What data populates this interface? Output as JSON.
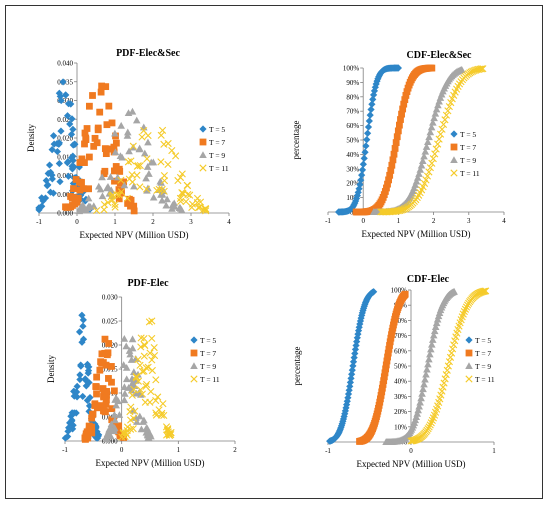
{
  "colors": {
    "t5": "#2E86C8",
    "t7": "#F07A20",
    "t9": "#A6A6A6",
    "t11": "#F5CB2A",
    "axis": "#7f7f7f"
  },
  "legend": [
    "T = 5",
    "T = 7",
    "T = 9",
    "T = 11"
  ],
  "chart_data": [
    {
      "type": "scatter",
      "title": "PDF-Elec&Sec",
      "xlabel": "Expected NPV (Million USD)",
      "ylabel": "Density",
      "xlim": [
        -1,
        4
      ],
      "ylim": [
        0,
        0.04
      ],
      "xticks": [
        "-1",
        "0",
        "1",
        "2",
        "3",
        "4"
      ],
      "yticks": [
        "0.000",
        "0.005",
        "0.010",
        "0.015",
        "0.020",
        "0.025",
        "0.030",
        "0.035",
        "0.040"
      ],
      "series": [
        {
          "name": "T = 5",
          "marker": "diamond",
          "center": -0.35,
          "sd": 0.28,
          "peak": 0.033
        },
        {
          "name": "T = 7",
          "marker": "square",
          "center": 0.6,
          "sd": 0.38,
          "peak": 0.034
        },
        {
          "name": "T = 9",
          "marker": "triangle",
          "center": 1.4,
          "sd": 0.55,
          "peak": 0.026
        },
        {
          "name": "T = 11",
          "marker": "x",
          "center": 2.0,
          "sd": 0.6,
          "peak": 0.024
        }
      ]
    },
    {
      "type": "scatter",
      "title": "CDF-Elec&Sec",
      "xlabel": "Expected NPV (Million USD)",
      "ylabel": "percentage",
      "xlim": [
        -1,
        4
      ],
      "ylim": [
        0,
        100
      ],
      "xticks": [
        "-1",
        "0",
        "1",
        "2",
        "3",
        "4"
      ],
      "yticks": [
        "0%",
        "10%",
        "20%",
        "30%",
        "40%",
        "50%",
        "60%",
        "70%",
        "80%",
        "90%",
        "100%"
      ],
      "series": [
        {
          "name": "T = 5",
          "marker": "diamond",
          "center": 0.1,
          "sd": 0.22,
          "xmin": -0.7,
          "xmax": 1.0
        },
        {
          "name": "T = 7",
          "marker": "square",
          "center": 0.95,
          "sd": 0.3,
          "xmin": -0.2,
          "xmax": 1.95
        },
        {
          "name": "T = 9",
          "marker": "triangle",
          "center": 1.85,
          "sd": 0.42,
          "xmin": 0.3,
          "xmax": 2.8
        },
        {
          "name": "T = 11",
          "marker": "x",
          "center": 2.15,
          "sd": 0.48,
          "xmin": 0.5,
          "xmax": 3.4
        }
      ]
    },
    {
      "type": "scatter",
      "title": "PDF-Elec",
      "xlabel": "Expected NPV (Million USD)",
      "ylabel": "Density",
      "xlim": [
        -1,
        2
      ],
      "ylim": [
        0,
        0.03
      ],
      "xticks": [
        "-1",
        "0",
        "1",
        "2"
      ],
      "yticks": [
        "0.000",
        "0.005",
        "0.010",
        "0.015",
        "0.020",
        "0.025",
        "0.030"
      ],
      "series": [
        {
          "name": "T = 5",
          "marker": "diamond",
          "center": -0.7,
          "sd": 0.12,
          "peak": 0.024
        },
        {
          "name": "T = 7",
          "marker": "square",
          "center": -0.3,
          "sd": 0.14,
          "peak": 0.022
        },
        {
          "name": "T = 9",
          "marker": "triangle",
          "center": 0.12,
          "sd": 0.16,
          "peak": 0.023
        },
        {
          "name": "T = 11",
          "marker": "x",
          "center": 0.45,
          "sd": 0.18,
          "peak": 0.026
        }
      ]
    },
    {
      "type": "scatter",
      "title": "CDF-Elec",
      "xlabel": "Expected NPV (Million USD)",
      "ylabel": "percentage",
      "xlim": [
        -1,
        1
      ],
      "ylim": [
        0,
        100
      ],
      "xticks": [
        "-1",
        "0",
        "1"
      ],
      "yticks": [
        "0%",
        "10%",
        "20%",
        "30%",
        "40%",
        "50%",
        "60%",
        "70%",
        "80%",
        "90%",
        "100%"
      ],
      "series": [
        {
          "name": "T = 5",
          "marker": "diamond",
          "center": -0.7,
          "sd": 0.11,
          "xmin": -0.98,
          "xmax": -0.45
        },
        {
          "name": "T = 7",
          "marker": "square",
          "center": -0.3,
          "sd": 0.12,
          "xmin": -0.62,
          "xmax": -0.07
        },
        {
          "name": "T = 9",
          "marker": "triangle",
          "center": 0.2,
          "sd": 0.14,
          "xmin": -0.3,
          "xmax": 0.52
        },
        {
          "name": "T = 11",
          "marker": "x",
          "center": 0.45,
          "sd": 0.18,
          "xmin": 0.0,
          "xmax": 0.9
        }
      ]
    }
  ]
}
